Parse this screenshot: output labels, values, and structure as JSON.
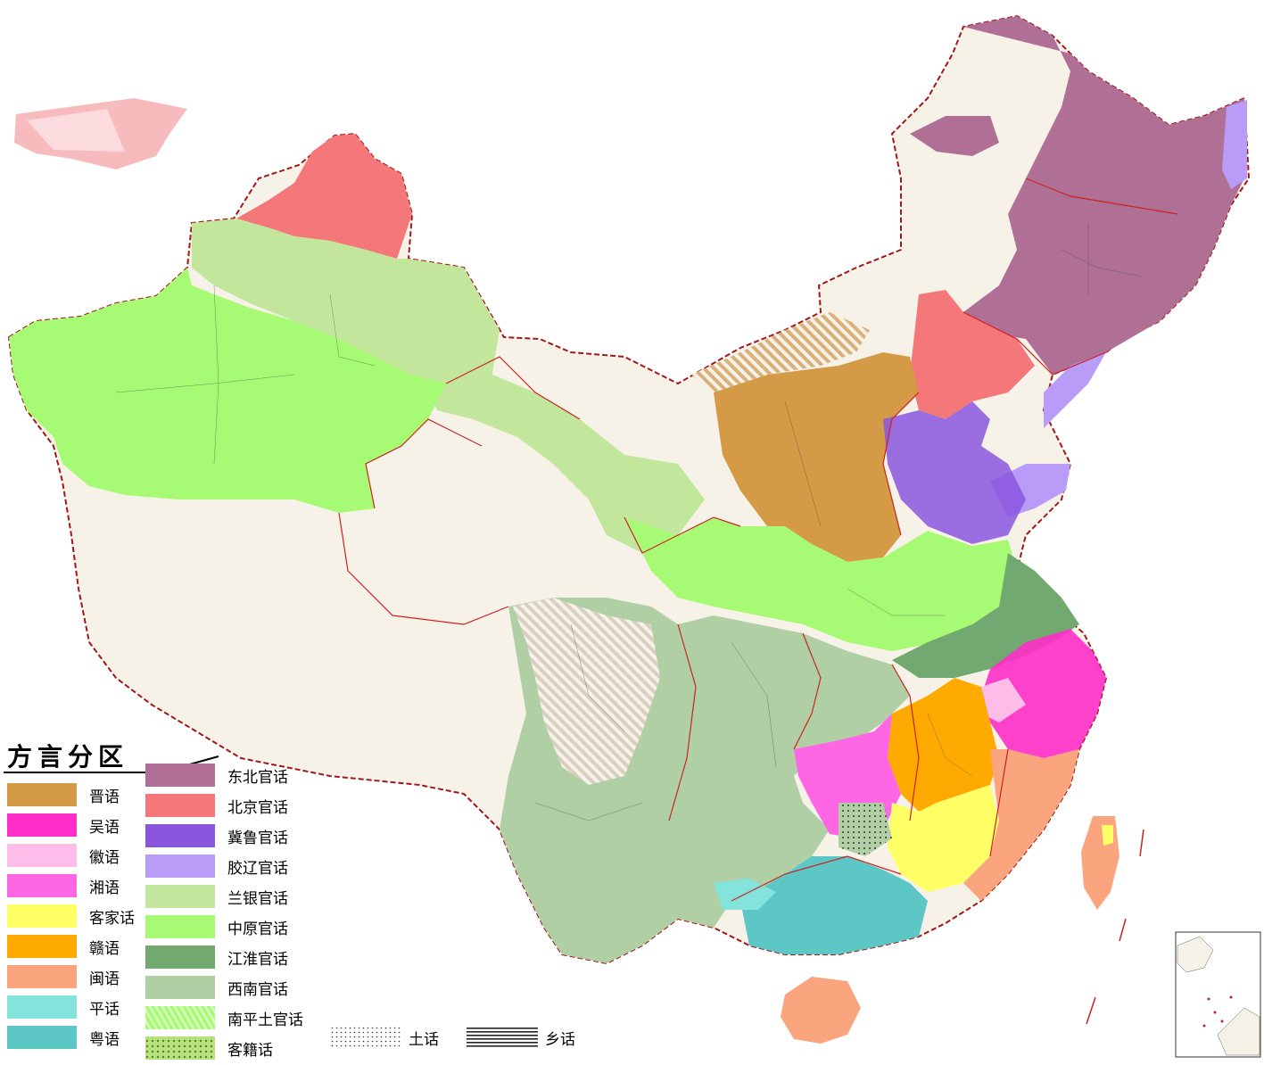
{
  "legend": {
    "title": "方言分区",
    "column1": [
      {
        "label": "晋语",
        "color": "#d49a45",
        "pattern": "solid"
      },
      {
        "label": "吴语",
        "color": "#ff2ec8",
        "pattern": "solid"
      },
      {
        "label": "徽语",
        "color": "#fdbde8",
        "pattern": "solid"
      },
      {
        "label": "湘语",
        "color": "#fe66e4",
        "pattern": "solid"
      },
      {
        "label": "客家话",
        "color": "#ffff66",
        "pattern": "solid"
      },
      {
        "label": "赣语",
        "color": "#ffaa00",
        "pattern": "solid"
      },
      {
        "label": "闽语",
        "color": "#fba57e",
        "pattern": "solid"
      },
      {
        "label": "平话",
        "color": "#84e4dc",
        "pattern": "solid"
      },
      {
        "label": "粤语",
        "color": "#5cc7c4",
        "pattern": "solid"
      }
    ],
    "column2": [
      {
        "label": "东北官话",
        "color": "#b07096",
        "pattern": "solid"
      },
      {
        "label": "北京官话",
        "color": "#f4777a",
        "pattern": "solid"
      },
      {
        "label": "冀鲁官话",
        "color": "#8a56de",
        "pattern": "solid"
      },
      {
        "label": "胶辽官话",
        "color": "#b89cf8",
        "pattern": "solid"
      },
      {
        "label": "兰银官话",
        "color": "#c2e79c",
        "pattern": "solid"
      },
      {
        "label": "中原官话",
        "color": "#a7fb74",
        "pattern": "solid"
      },
      {
        "label": "江淮官话",
        "color": "#71a970",
        "pattern": "solid"
      },
      {
        "label": "西南官话",
        "color": "#b0cfa5",
        "pattern": "solid"
      },
      {
        "label": "南平土官话",
        "color": "#a7fb74",
        "pattern": "stripes"
      },
      {
        "label": "客籍话",
        "color": "#8ccc3c",
        "pattern": "dots"
      }
    ],
    "extra": [
      {
        "label": "土话",
        "pattern": "dots-black"
      },
      {
        "label": "乡话",
        "pattern": "hlines"
      }
    ]
  },
  "colors": {
    "land": "#f6f2e8",
    "border": "#cc2222",
    "county_line": "#444444",
    "sea": "#ffffff"
  }
}
